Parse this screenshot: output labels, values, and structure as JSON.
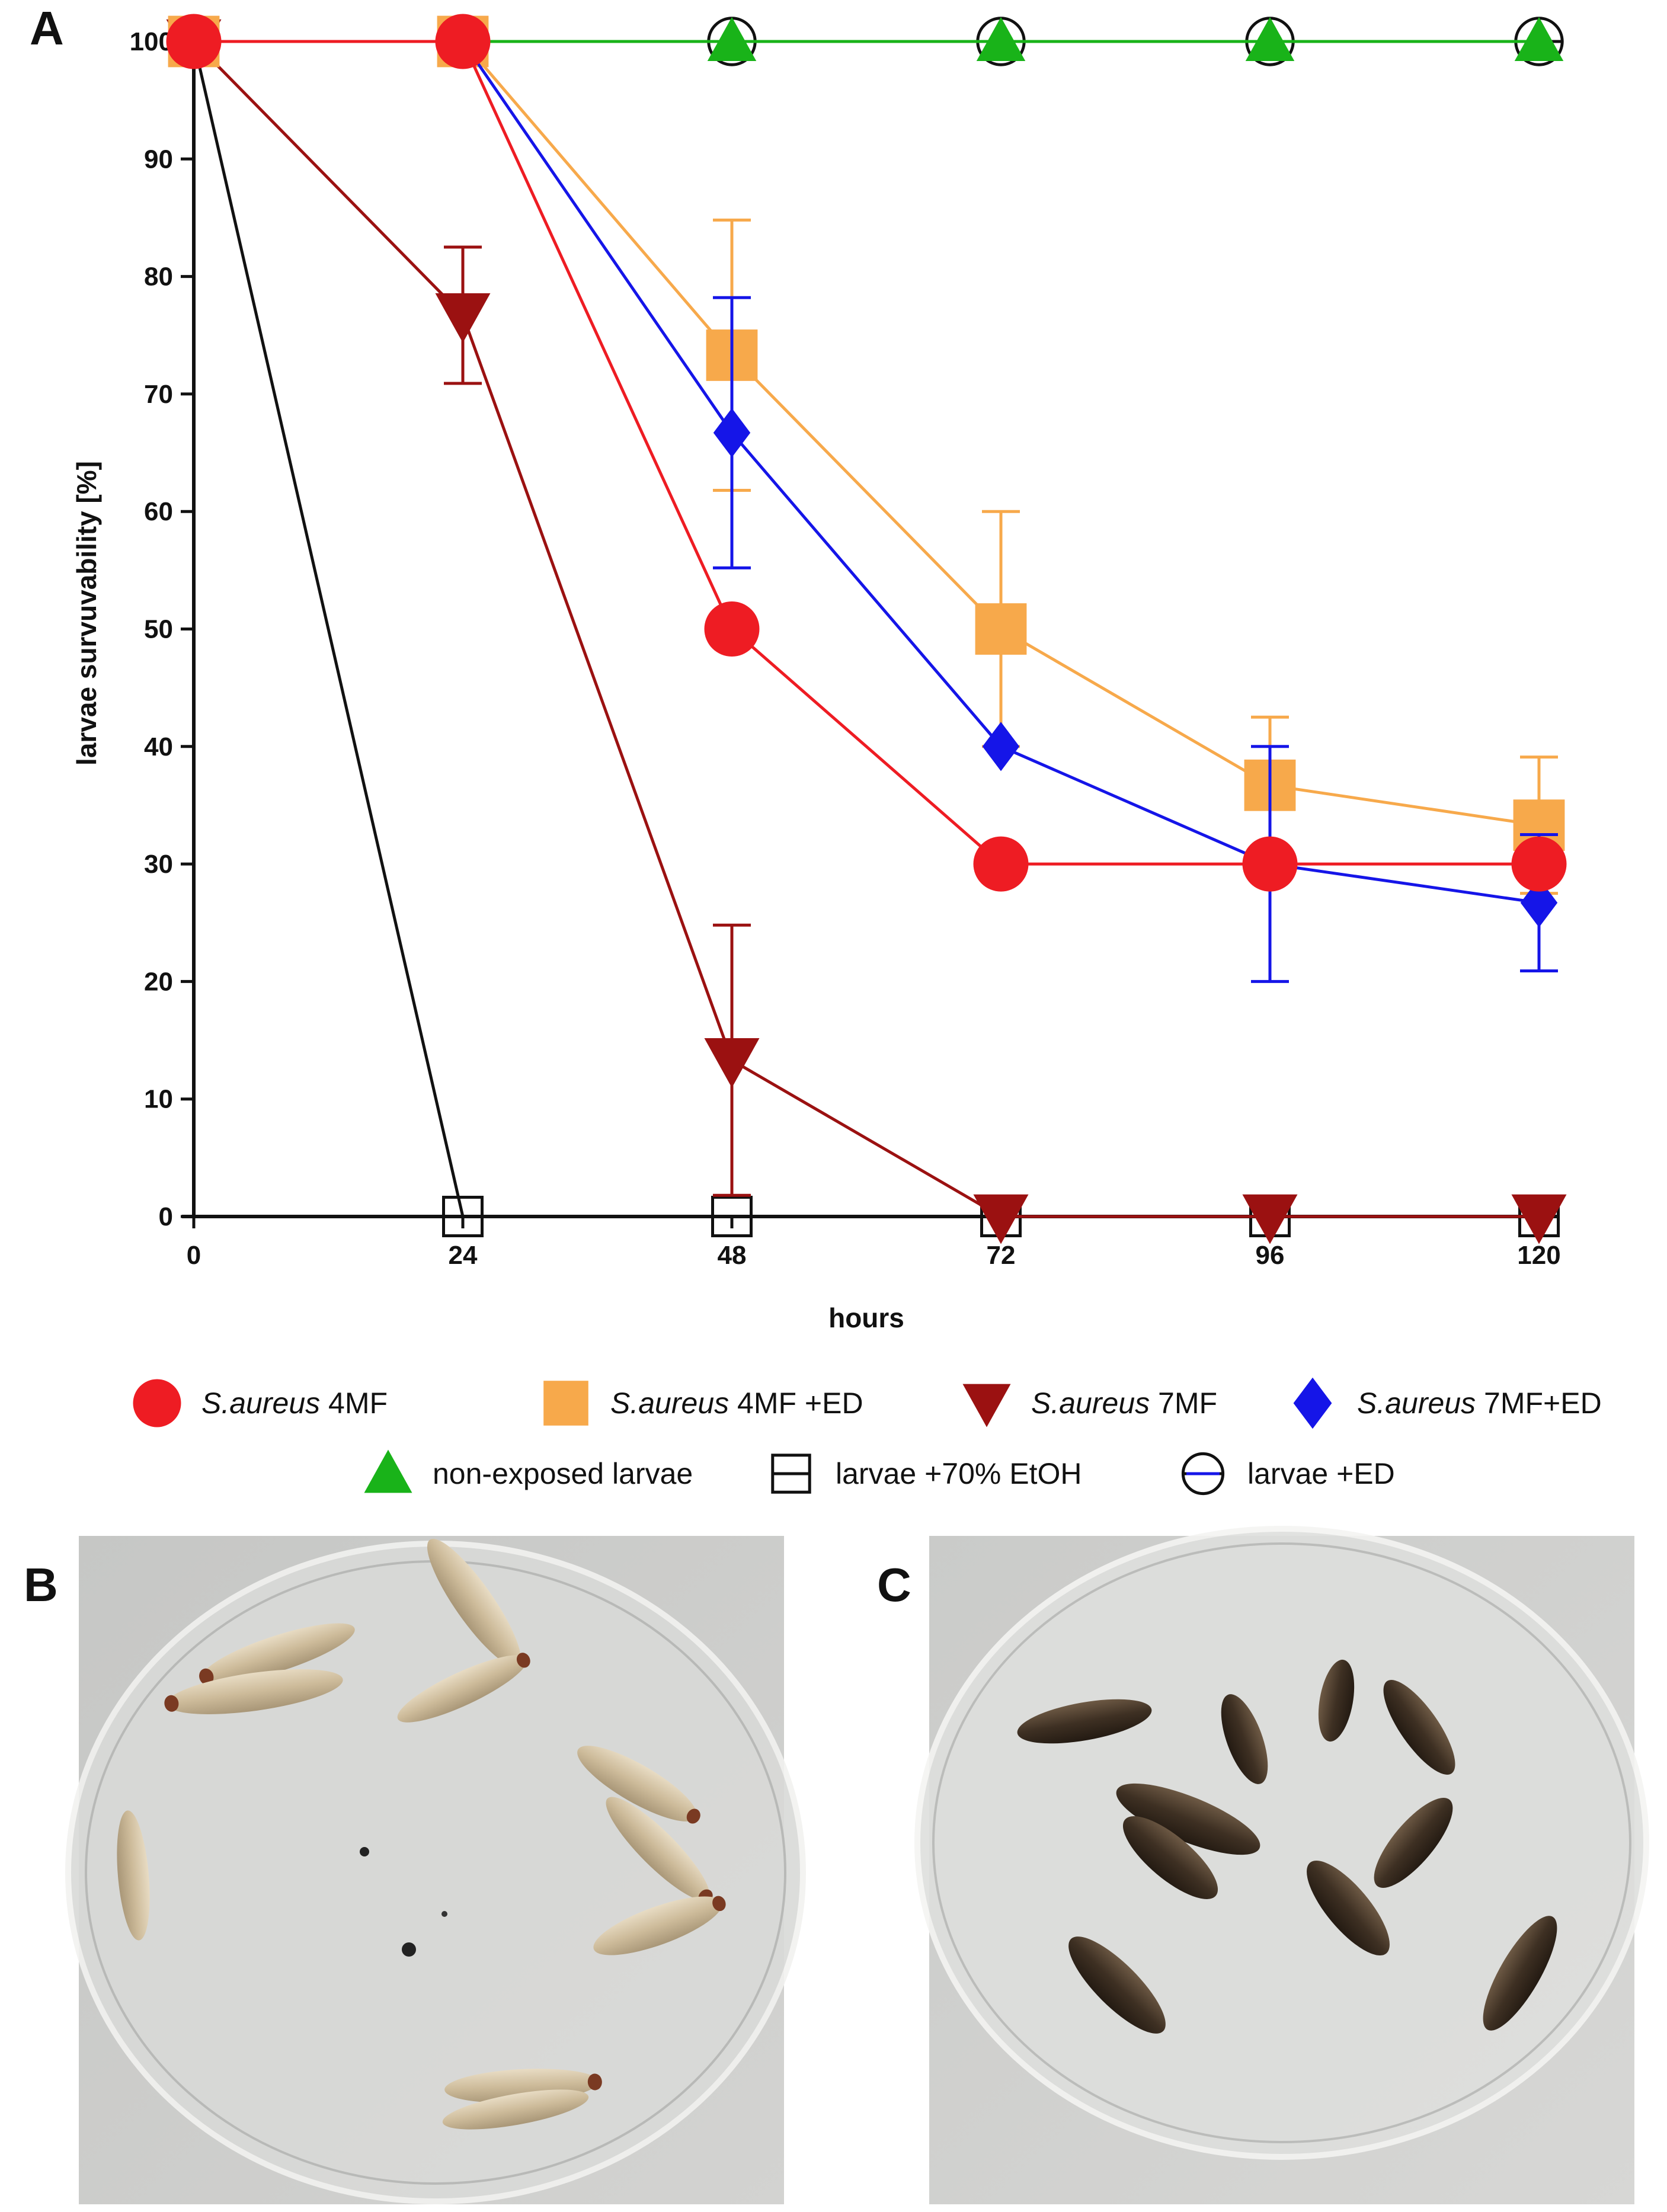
{
  "panels": {
    "a": "A",
    "b": "B",
    "c": "C"
  },
  "chart_data": {
    "type": "line",
    "xlabel": "hours",
    "ylabel": "larvae survuvability [%]",
    "x": [
      0,
      24,
      48,
      72,
      96,
      120
    ],
    "xlim": [
      0,
      120
    ],
    "ylim": [
      0,
      100
    ],
    "xticks": [
      0,
      24,
      48,
      72,
      96,
      120
    ],
    "yticks": [
      0,
      10,
      20,
      30,
      40,
      50,
      60,
      70,
      80,
      90,
      100
    ],
    "grid": false,
    "series": [
      {
        "name": "S.aureus 4MF",
        "name_italic": "S.aureus",
        "name_rest": " 4MF",
        "color": "#ee1c23",
        "marker": "circle",
        "values": [
          100,
          100,
          50,
          30,
          30,
          30
        ],
        "errors": [
          0,
          0,
          0,
          0,
          0,
          0
        ]
      },
      {
        "name": "S.aureus 4MF +ED",
        "name_italic": "S.aureus",
        "name_rest": " 4MF +ED",
        "color": "#f7a94b",
        "marker": "square",
        "values": [
          100,
          100,
          73.3,
          50,
          36.7,
          33.3
        ],
        "errors": [
          0,
          0,
          11.5,
          10,
          5.8,
          5.8
        ]
      },
      {
        "name": "S.aureus 7MF",
        "name_italic": "S.aureus",
        "name_rest": " 7MF",
        "color": "#9b1111",
        "marker": "triangle-down",
        "values": [
          100,
          76.7,
          13.3,
          0,
          0,
          0
        ],
        "errors": [
          0,
          5.8,
          11.5,
          0,
          0,
          0
        ]
      },
      {
        "name": "S.aureus 7MF+ED",
        "name_italic": "S.aureus",
        "name_rest": " 7MF+ED",
        "color": "#1515e8",
        "marker": "diamond",
        "values": [
          100,
          100,
          66.7,
          40,
          30,
          26.7
        ],
        "errors": [
          0,
          0,
          11.5,
          0,
          10,
          5.8
        ]
      },
      {
        "name": "non-exposed larvae",
        "name_italic": "",
        "name_rest": "non-exposed larvae",
        "color": "#19b319",
        "marker": "triangle-up",
        "values": [
          100,
          100,
          100,
          100,
          100,
          100
        ],
        "errors": [
          0,
          0,
          0,
          0,
          0,
          0
        ]
      },
      {
        "name": "larvae +70% EtOH",
        "name_italic": "",
        "name_rest": "larvae +70% EtOH",
        "color": "#111111",
        "marker": "open-square",
        "values": [
          100,
          0,
          0,
          0,
          0,
          0
        ],
        "errors": [
          0,
          0,
          0,
          0,
          0,
          0
        ]
      },
      {
        "name": "larvae +ED",
        "name_italic": "",
        "name_rest": "larvae +ED",
        "color": "#111111",
        "marker": "open-circle",
        "values": [
          100,
          100,
          100,
          100,
          100,
          100
        ],
        "errors": [
          0,
          0,
          0,
          0,
          0,
          0
        ]
      }
    ],
    "legend_position": "bottom"
  },
  "colors": {
    "axis": "#111111"
  }
}
